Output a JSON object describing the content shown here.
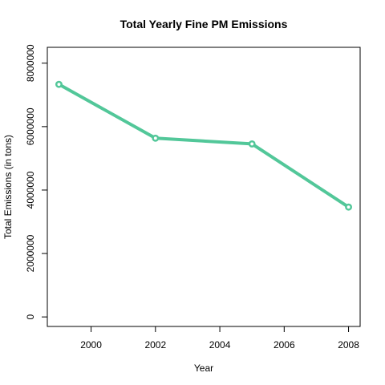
{
  "chart_data": {
    "type": "line",
    "title": "Total Yearly Fine PM Emissions",
    "xlabel": "Year",
    "ylabel": "Total Emissions (in tons)",
    "x": [
      1999,
      2002,
      2005,
      2008
    ],
    "values": [
      7332967,
      5635780,
      5454703,
      3464206
    ],
    "xlim": [
      1998.64,
      2008.36
    ],
    "ylim": [
      -300000,
      8500000
    ],
    "x_ticks": [
      2000,
      2002,
      2004,
      2006,
      2008
    ],
    "x_tick_labels": [
      "2000",
      "2002",
      "2004",
      "2006",
      "2008"
    ],
    "y_ticks": [
      0,
      2000000,
      4000000,
      6000000,
      8000000
    ],
    "y_tick_labels": [
      "0",
      "2000000",
      "4000000",
      "6000000",
      "8000000"
    ],
    "line_color": "#52c799",
    "grid": false,
    "legend": "none"
  }
}
